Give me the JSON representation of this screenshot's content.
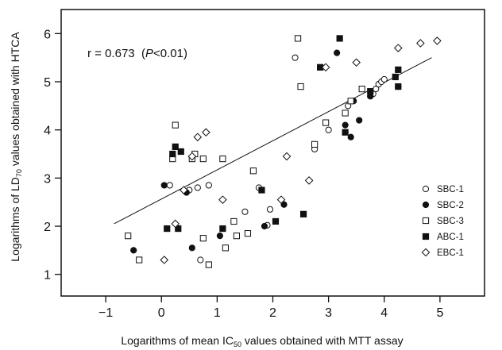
{
  "chart_data": {
    "type": "scatter",
    "x_label_prefix": "Logarithms of mean IC",
    "x_label_sub": "50",
    "x_label_suffix": " values obtained with MTT assay",
    "y_label_prefix": "Logarithms of LD",
    "y_label_sub": "70",
    "y_label_suffix": " values obtained with HTCA",
    "annotation_prefix": "r = 0.673  (",
    "annotation_italic": "P",
    "annotation_suffix": "<0.01)",
    "xlim": [
      -1.8,
      5.8
    ],
    "ylim": [
      0.55,
      6.5
    ],
    "x_ticks": [
      -1,
      0,
      1,
      2,
      3,
      4,
      5
    ],
    "x_tick_labels": [
      "−1",
      "0",
      "1",
      "2",
      "3",
      "4",
      "5"
    ],
    "y_ticks": [
      1,
      2,
      3,
      4,
      5,
      6
    ],
    "y_tick_labels": [
      "1",
      "2",
      "3",
      "4",
      "5",
      "6"
    ],
    "grid": false,
    "legend_position": "right-lower",
    "regression_line": {
      "x": [
        -0.85,
        4.85
      ],
      "y": [
        2.05,
        5.5
      ]
    },
    "series": [
      {
        "name": "SBC-1",
        "marker": "open-circle",
        "points": [
          [
            0.15,
            2.85
          ],
          [
            0.5,
            2.75
          ],
          [
            0.65,
            2.8
          ],
          [
            0.85,
            2.85
          ],
          [
            1.5,
            2.3
          ],
          [
            1.75,
            2.8
          ],
          [
            1.9,
            2.02
          ],
          [
            1.95,
            2.35
          ],
          [
            2.4,
            5.5
          ],
          [
            2.75,
            3.6
          ],
          [
            3.0,
            4.0
          ],
          [
            3.35,
            4.5
          ],
          [
            3.75,
            4.7
          ],
          [
            3.8,
            4.75
          ],
          [
            3.85,
            4.85
          ],
          [
            3.9,
            4.95
          ],
          [
            3.95,
            5.0
          ],
          [
            4.0,
            5.05
          ],
          [
            0.7,
            1.3
          ]
        ]
      },
      {
        "name": "SBC-2",
        "marker": "filled-circle",
        "points": [
          [
            -0.5,
            1.5
          ],
          [
            0.05,
            2.85
          ],
          [
            0.45,
            2.7
          ],
          [
            0.55,
            1.55
          ],
          [
            1.05,
            1.8
          ],
          [
            1.85,
            2.0
          ],
          [
            2.2,
            2.45
          ],
          [
            3.15,
            5.6
          ],
          [
            3.3,
            4.1
          ],
          [
            3.4,
            3.85
          ],
          [
            3.45,
            4.6
          ],
          [
            3.55,
            4.2
          ],
          [
            3.75,
            4.7
          ],
          [
            4.25,
            4.9
          ]
        ]
      },
      {
        "name": "SBC-3",
        "marker": "open-square",
        "points": [
          [
            -0.4,
            1.3
          ],
          [
            -0.6,
            1.8
          ],
          [
            0.2,
            3.4
          ],
          [
            0.25,
            4.1
          ],
          [
            0.55,
            3.4
          ],
          [
            0.6,
            3.5
          ],
          [
            0.75,
            3.4
          ],
          [
            0.75,
            1.75
          ],
          [
            0.85,
            1.2
          ],
          [
            1.1,
            3.4
          ],
          [
            1.15,
            1.55
          ],
          [
            1.3,
            2.1
          ],
          [
            1.35,
            1.8
          ],
          [
            1.55,
            1.85
          ],
          [
            1.65,
            3.15
          ],
          [
            2.45,
            5.9
          ],
          [
            2.5,
            4.9
          ],
          [
            2.75,
            3.7
          ],
          [
            2.95,
            4.15
          ],
          [
            3.3,
            4.35
          ],
          [
            3.4,
            4.6
          ],
          [
            3.6,
            4.85
          ]
        ]
      },
      {
        "name": "ABC-1",
        "marker": "filled-square",
        "points": [
          [
            0.1,
            1.95
          ],
          [
            0.2,
            3.5
          ],
          [
            0.25,
            3.65
          ],
          [
            0.3,
            1.95
          ],
          [
            0.35,
            3.55
          ],
          [
            1.1,
            1.95
          ],
          [
            1.8,
            2.75
          ],
          [
            2.05,
            2.1
          ],
          [
            2.55,
            2.25
          ],
          [
            2.85,
            5.3
          ],
          [
            3.2,
            5.9
          ],
          [
            3.3,
            3.95
          ],
          [
            3.75,
            4.8
          ],
          [
            4.2,
            5.1
          ],
          [
            4.25,
            5.25
          ],
          [
            4.25,
            4.9
          ]
        ]
      },
      {
        "name": "EBC-1",
        "marker": "open-diamond",
        "points": [
          [
            0.05,
            1.3
          ],
          [
            0.25,
            2.05
          ],
          [
            0.4,
            2.75
          ],
          [
            0.55,
            3.45
          ],
          [
            0.65,
            3.85
          ],
          [
            0.8,
            3.95
          ],
          [
            1.1,
            2.55
          ],
          [
            2.15,
            2.55
          ],
          [
            2.25,
            3.45
          ],
          [
            2.65,
            2.95
          ],
          [
            2.95,
            5.3
          ],
          [
            3.5,
            5.4
          ],
          [
            4.25,
            5.7
          ],
          [
            4.65,
            5.8
          ],
          [
            4.95,
            5.85
          ]
        ]
      }
    ]
  }
}
